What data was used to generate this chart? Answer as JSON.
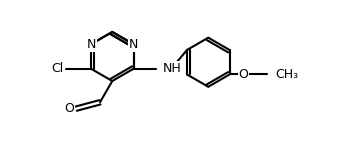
{
  "bg_color": "#ffffff",
  "line_color": "#000000",
  "line_width": 1.5,
  "font_size": 9,
  "figsize": [
    3.64,
    1.52
  ],
  "dpi": 100,
  "xlim": [
    -0.8,
    5.2
  ],
  "ylim": [
    -1.4,
    1.3
  ]
}
